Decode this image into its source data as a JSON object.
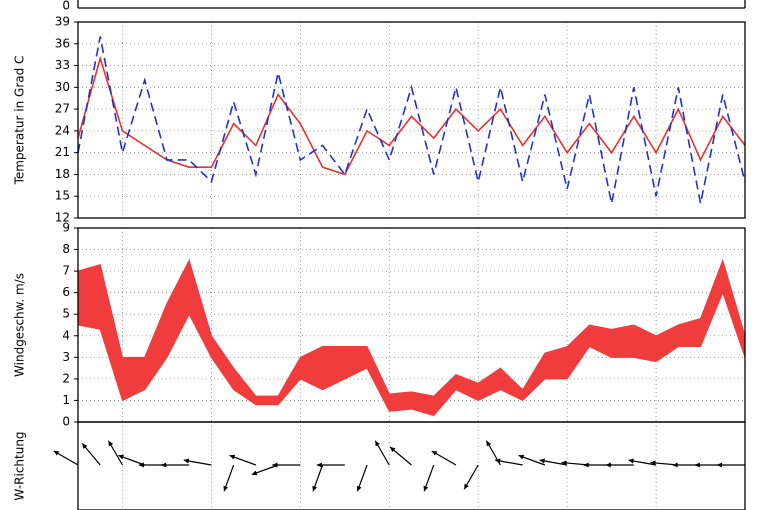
{
  "top_panel": {
    "yticks": [
      0
    ]
  },
  "chart_data": [
    {
      "type": "line",
      "ylabel": "Temperatur in Grad C",
      "x": [
        0,
        0.25,
        0.5,
        0.75,
        1,
        1.25,
        1.5,
        1.75,
        2,
        2.25,
        2.5,
        2.75,
        3,
        3.25,
        3.5,
        3.75,
        4,
        4.25,
        4.5,
        4.75,
        5,
        5.25,
        5.5,
        5.75,
        6,
        6.25,
        6.5,
        6.75,
        7,
        7.25,
        7.5
      ],
      "xlim": [
        0,
        7.5
      ],
      "xgrid": [
        0.5,
        1.5,
        2.5,
        3.5,
        4.5,
        5.5,
        6.5
      ],
      "ylim": [
        12,
        39
      ],
      "yticks": [
        12,
        15,
        18,
        21,
        24,
        27,
        30,
        33,
        36,
        39
      ],
      "grid": true,
      "series": [
        {
          "color": "#e8322d",
          "dash": false,
          "values": [
            23,
            34,
            24,
            22,
            20,
            19,
            19,
            25,
            22,
            29,
            25,
            19,
            18,
            24,
            22,
            26,
            23,
            27,
            24,
            27,
            22,
            26,
            21,
            25,
            21,
            26,
            21,
            27,
            20,
            26,
            22
          ]
        },
        {
          "color": "#2233cc",
          "dash": true,
          "values": [
            21,
            37,
            21,
            31,
            20,
            20,
            17,
            28,
            18,
            32,
            20,
            22,
            18,
            27,
            20,
            30,
            18,
            30,
            17,
            30,
            17,
            29,
            16,
            29,
            14,
            30,
            15,
            30,
            14,
            29,
            17
          ]
        }
      ]
    },
    {
      "type": "band",
      "ylabel": "Windgeschw. m/s",
      "x": [
        0,
        0.25,
        0.5,
        0.75,
        1,
        1.25,
        1.5,
        1.75,
        2,
        2.25,
        2.5,
        2.75,
        3,
        3.25,
        3.5,
        3.75,
        4,
        4.25,
        4.5,
        4.75,
        5,
        5.25,
        5.5,
        5.75,
        6,
        6.25,
        6.5,
        6.75,
        7,
        7.25,
        7.5
      ],
      "xlim": [
        0,
        7.5
      ],
      "xgrid": [
        0.5,
        1.5,
        2.5,
        3.5,
        4.5,
        5.5,
        6.5
      ],
      "ylim": [
        0,
        9
      ],
      "yticks": [
        0,
        1,
        2,
        3,
        4,
        5,
        6,
        7,
        8,
        9
      ],
      "grid": true,
      "color": "#f03c3c",
      "low": [
        4.5,
        4.3,
        1,
        1.5,
        3,
        5,
        3,
        1.5,
        0.8,
        0.8,
        2,
        1.5,
        2,
        2.5,
        0.5,
        0.6,
        0.3,
        1.5,
        1,
        1.5,
        1,
        2,
        2,
        3.5,
        3,
        3,
        2.8,
        3.5,
        3.5,
        6,
        3
      ],
      "high": [
        7,
        7.3,
        3,
        3,
        5.5,
        7.5,
        4,
        2.5,
        1.2,
        1.2,
        3,
        3.5,
        3.5,
        3.5,
        1.3,
        1.4,
        1.2,
        2.2,
        1.8,
        2.5,
        1.5,
        3.2,
        3.5,
        4.5,
        4.3,
        4.5,
        4,
        4.5,
        4.8,
        7.5,
        4
      ]
    },
    {
      "type": "arrows",
      "ylabel": "W-Richtung",
      "x": [
        0,
        0.25,
        0.5,
        0.75,
        1,
        1.25,
        1.5,
        1.75,
        2,
        2.25,
        2.5,
        2.75,
        3,
        3.25,
        3.5,
        3.75,
        4,
        4.25,
        4.5,
        4.75,
        5,
        5.25,
        5.5,
        5.75,
        6,
        6.25,
        6.5,
        6.75,
        7,
        7.25,
        7.5
      ],
      "xlim": [
        0,
        7.5
      ],
      "xgrid": [
        0.5,
        1.5,
        2.5,
        3.5,
        4.5,
        5.5,
        6.5
      ],
      "color": "#000000",
      "directions": [
        300,
        320,
        330,
        290,
        270,
        270,
        280,
        200,
        290,
        250,
        270,
        200,
        270,
        200,
        330,
        310,
        200,
        300,
        210,
        330,
        280,
        290,
        280,
        275,
        270,
        270,
        280,
        275,
        270,
        270,
        270
      ]
    }
  ]
}
